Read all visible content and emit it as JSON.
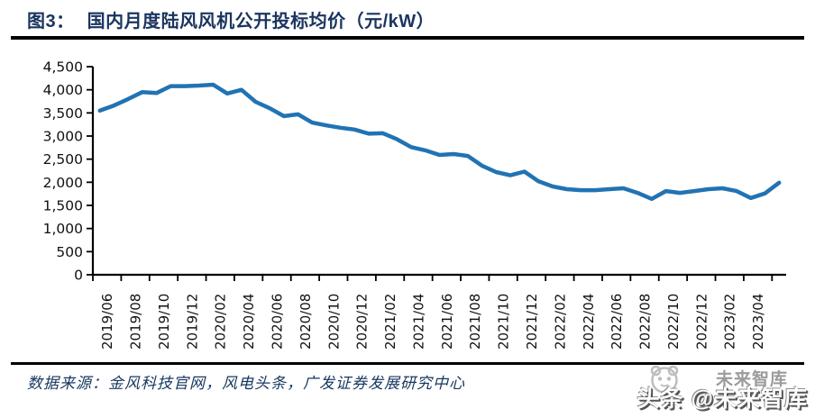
{
  "header": {
    "figure_label": "图3：",
    "title": "国内月度陆风风机公开投标均价（元/kW）"
  },
  "footer": {
    "source": "数据来源：金风科技官网，风电头条，广发证券发展研究中心"
  },
  "watermark": {
    "logo": "panda-circle-logo",
    "small_text": "未来智库",
    "main_text": "头条 @未来智库"
  },
  "colors": {
    "line": "#2173b3",
    "title": "#1b3560",
    "axis": "#000000",
    "tick_label": "#111111",
    "source_text": "#17375e"
  },
  "chart_data": {
    "type": "line",
    "title": "国内月度陆风风机公开投标均价（元/kW）",
    "ylabel": "",
    "xlabel": "",
    "unit": "元/kW",
    "ylim": [
      0,
      4500
    ],
    "y_tick_labels": [
      "4,500",
      "4,000",
      "3,500",
      "3,000",
      "2,500",
      "2,000",
      "1,500",
      "1,000",
      "500",
      "0"
    ],
    "x_tick_labels": [
      "2019/06",
      "2019/08",
      "2019/10",
      "2019/12",
      "2020/02",
      "2020/04",
      "2020/06",
      "2020/08",
      "2020/10",
      "2020/12",
      "2021/02",
      "2021/04",
      "2021/06",
      "2021/08",
      "2021/10",
      "2021/12",
      "2022/02",
      "2022/04",
      "2022/06",
      "2022/08",
      "2022/10",
      "2022/12",
      "2023/02",
      "2023/04"
    ],
    "grid": false,
    "legend": "none",
    "x": [
      "2019/06",
      "2019/07",
      "2019/08",
      "2019/09",
      "2019/10",
      "2019/11",
      "2019/12",
      "2020/01",
      "2020/02",
      "2020/03",
      "2020/04",
      "2020/05",
      "2020/06",
      "2020/07",
      "2020/08",
      "2020/09",
      "2020/10",
      "2020/11",
      "2020/12",
      "2021/01",
      "2021/02",
      "2021/03",
      "2021/04",
      "2021/05",
      "2021/06",
      "2021/07",
      "2021/08",
      "2021/09",
      "2021/10",
      "2021/11",
      "2021/12",
      "2022/01",
      "2022/02",
      "2022/03",
      "2022/04",
      "2022/05",
      "2022/06",
      "2022/07",
      "2022/08",
      "2022/09",
      "2022/10",
      "2022/11",
      "2022/12",
      "2023/01",
      "2023/02",
      "2023/03",
      "2023/04",
      "2023/05",
      "2023/06"
    ],
    "values": [
      3550,
      3660,
      3800,
      3950,
      3930,
      4080,
      4080,
      4090,
      4110,
      3920,
      4000,
      3740,
      3600,
      3430,
      3470,
      3290,
      3230,
      3180,
      3140,
      3050,
      3060,
      2930,
      2760,
      2690,
      2590,
      2610,
      2570,
      2360,
      2220,
      2150,
      2230,
      2020,
      1910,
      1850,
      1830,
      1830,
      1850,
      1870,
      1770,
      1640,
      1810,
      1770,
      1810,
      1850,
      1870,
      1810,
      1660,
      1760,
      1990
    ]
  }
}
